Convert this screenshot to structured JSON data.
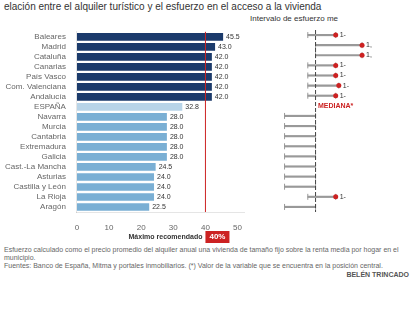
{
  "chart_data": [
    {
      "type": "bar",
      "orientation": "horizontal",
      "title": "elación entre el alquiler turístico y el esfuerzo en el acceso a la vivienda",
      "categories": [
        "Baleares",
        "Madrid",
        "Cataluña",
        "Canarias",
        "País Vasco",
        "Com. Valenciana",
        "Andalucía",
        "ESPAÑA",
        "Navarra",
        "Murcia",
        "Cantabria",
        "Extremadura",
        "Galicia",
        "Cast.-La Mancha",
        "Asturias",
        "Castilla y León",
        "La Rioja",
        "Aragón"
      ],
      "values": [
        45.5,
        43.0,
        42.0,
        42.0,
        42.0,
        42.0,
        42.0,
        32.8,
        28.0,
        28.0,
        28.0,
        28.0,
        28.0,
        24.5,
        24.0,
        24.0,
        24.0,
        22.5
      ],
      "value_labels": [
        "45.5",
        "43.0",
        "42.0",
        "42.0",
        "42.0",
        "42.0",
        "42.0",
        "32.8",
        "28.0",
        "28.0",
        "28.0",
        "28.0",
        "28.0",
        "24.5",
        "24.0",
        "24.0",
        "24.0",
        "22.5"
      ],
      "colors": [
        "#1b3a6b",
        "#1b3a6b",
        "#1b3a6b",
        "#1b3a6b",
        "#1b3a6b",
        "#1b3a6b",
        "#1b3a6b",
        "#b8d4e8",
        "#7aafd4",
        "#7aafd4",
        "#7aafd4",
        "#7aafd4",
        "#7aafd4",
        "#7aafd4",
        "#7aafd4",
        "#7aafd4",
        "#7aafd4",
        "#7aafd4"
      ],
      "xlim": [
        0,
        52
      ],
      "xticks": [
        0,
        10,
        20,
        30,
        40,
        50
      ],
      "grid": false,
      "data_labels": true,
      "annotations": [
        {
          "type": "line",
          "x": 40,
          "color": "#cc2222"
        },
        {
          "type": "label",
          "x": 40,
          "text": "Máximo recomendado"
        },
        {
          "type": "badge",
          "x": 40,
          "text": "40%",
          "color": "#cc2222"
        },
        {
          "type": "footer",
          "text": "Esfuerzo calculado como el precio promedio del alquiler anual una vivienda de tamaño fijo sobre la renta media por hogar en el municipio."
        },
        {
          "type": "footer",
          "text": "Fuentes: Banco de España, Mitma y portales inmobiliarios. (*) Valor de la variable que se encuentra en la posición central."
        },
        {
          "type": "credit",
          "text": "BELÉN TRINCADO"
        }
      ]
    },
    {
      "type": "range",
      "orientation": "horizontal",
      "title": "Intervalo de esfuerzo me",
      "categories": [
        "Baleares",
        "Madrid",
        "Cataluña",
        "Canarias",
        "País Vasco",
        "Com. Valenciana",
        "Andalucía",
        "ESPAÑA",
        "Navarra",
        "Murcia",
        "Cantabria",
        "Extremadura",
        "Galicia",
        "Cast.-La Mancha",
        "Asturias",
        "Castilla y León",
        "La Rioja",
        "Aragón"
      ],
      "values": [
        [
          0.72,
          1.08
        ],
        [
          0.82,
          1.42
        ],
        [
          0.82,
          1.42
        ],
        [
          0.72,
          1.08
        ],
        [
          0.72,
          1.08
        ],
        [
          0.72,
          1.12
        ],
        [
          0.72,
          1.08
        ],
        null,
        [
          0.42,
          0.82
        ],
        [
          0.42,
          0.82
        ],
        [
          0.42,
          0.82
        ],
        [
          0.42,
          0.82
        ],
        [
          0.42,
          0.82
        ],
        [
          0.42,
          0.82
        ],
        [
          0.42,
          0.82
        ],
        [
          0.42,
          0.82
        ],
        [
          0.72,
          1.08
        ],
        [
          0.42,
          0.82
        ]
      ],
      "color": "#999999",
      "xlim": [
        0,
        2.0
      ],
      "grid": false,
      "tick_labels": false,
      "annotations": [
        {
          "type": "line",
          "x": 0.82,
          "color": "#444444",
          "line_style": "dashed"
        },
        {
          "type": "point",
          "y": "Baleares",
          "x": 1.08,
          "text": "1-",
          "color": "#cc2222"
        },
        {
          "type": "point",
          "y": "Madrid",
          "x": 1.42,
          "text": "1,",
          "color": "#cc2222"
        },
        {
          "type": "point",
          "y": "Cataluña",
          "x": 1.42,
          "text": "1,",
          "color": "#cc2222"
        },
        {
          "type": "point",
          "y": "Canarias",
          "x": 1.08,
          "text": "1-",
          "color": "#cc2222"
        },
        {
          "type": "point",
          "y": "País Vasco",
          "x": 1.08,
          "text": "1-",
          "color": "#cc2222"
        },
        {
          "type": "point",
          "y": "Com. Valenciana",
          "x": 1.12,
          "text": "1-",
          "color": "#cc2222"
        },
        {
          "type": "point",
          "y": "Andalucía",
          "x": 1.08,
          "text": "1-",
          "color": "#cc2222"
        },
        {
          "type": "point",
          "y": "La Rioja",
          "x": 1.08,
          "text": "1-",
          "color": "#cc2222"
        },
        {
          "type": "label",
          "y": "ESPAÑA",
          "x": 0.85,
          "text": "MEDIANA*",
          "color": "#cc2222"
        }
      ]
    }
  ]
}
